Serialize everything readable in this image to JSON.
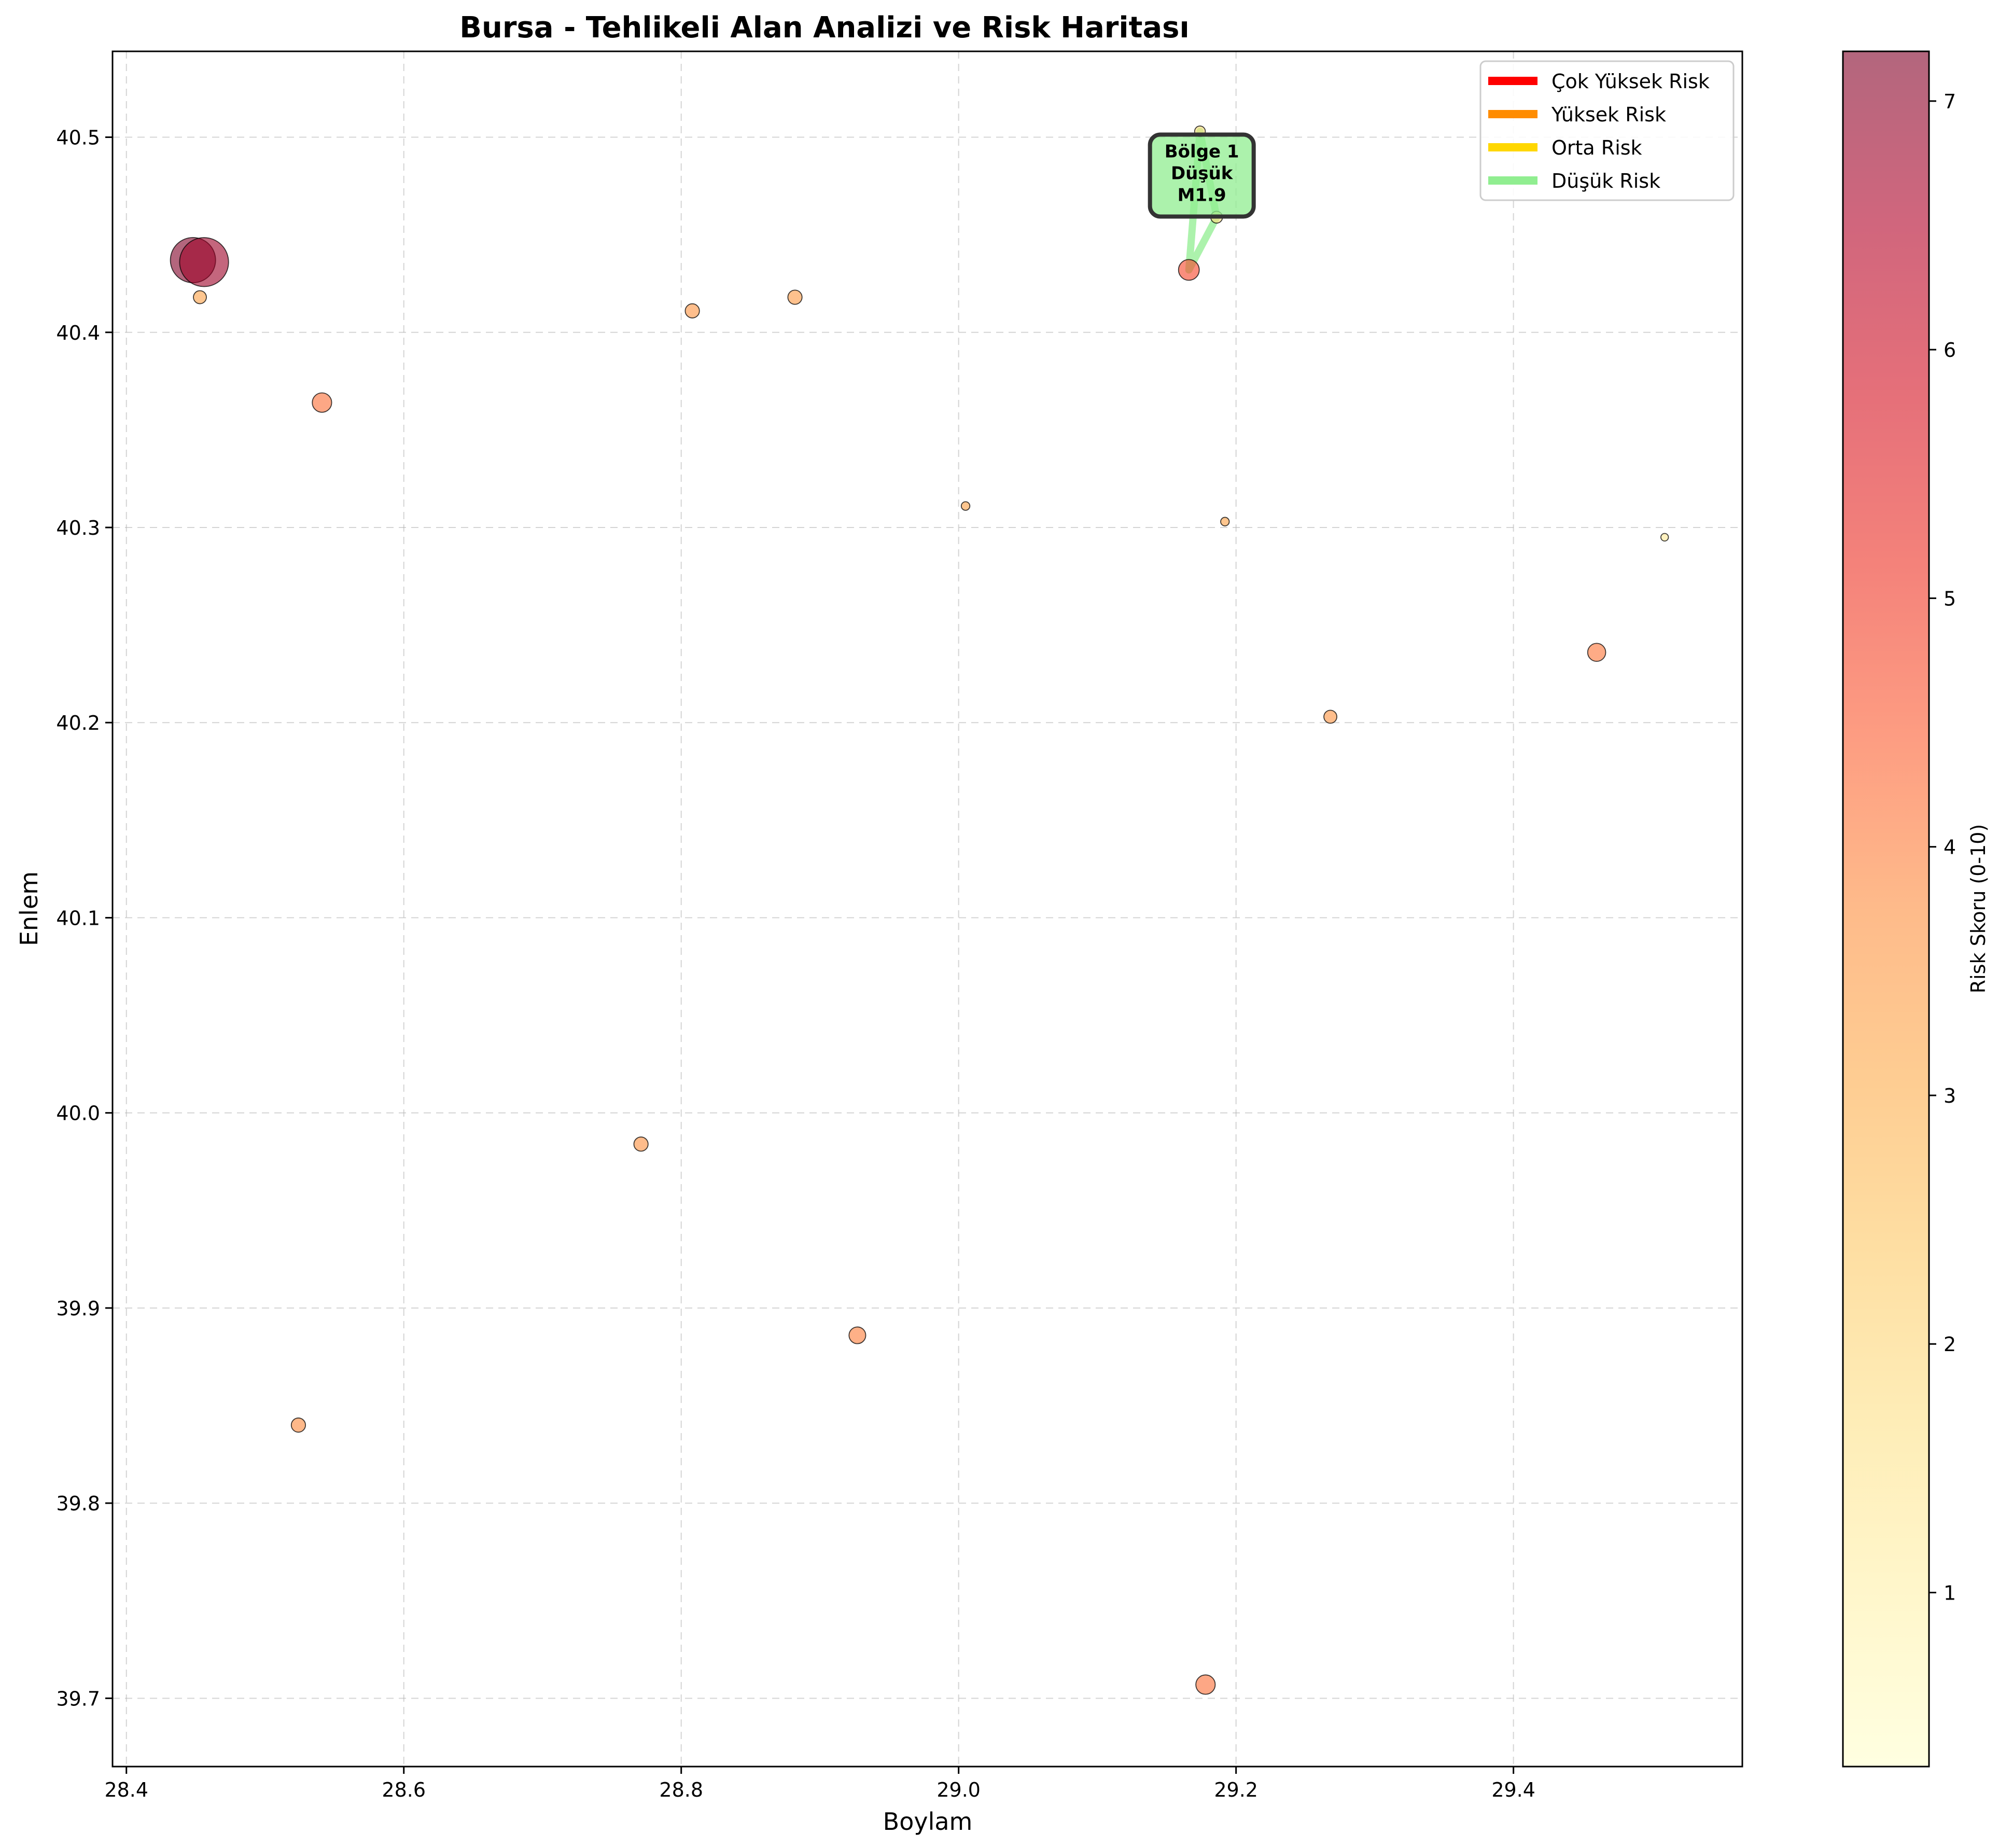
{
  "chart_data": {
    "type": "scatter",
    "title": "Bursa - Tehlikeli Alan Analizi ve Risk Haritası",
    "xlabel": "Boylam",
    "ylabel": "Enlem",
    "xlim": [
      28.4,
      29.5
    ],
    "ylim": [
      39.7,
      40.5
    ],
    "x_ticks": [
      28.4,
      28.6,
      28.8,
      29.0,
      29.2,
      29.4
    ],
    "y_ticks": [
      39.7,
      39.8,
      39.9,
      40.0,
      40.1,
      40.2,
      40.3,
      40.4,
      40.5
    ],
    "grid": true,
    "colorbar": {
      "label": "Risk Skoru (0-10)",
      "range": [
        0.3,
        7.2
      ],
      "ticks": [
        1,
        2,
        3,
        4,
        5,
        6,
        7
      ],
      "colormap": "YlOrRd"
    },
    "points": [
      {
        "lon": 28.448,
        "lat": 40.437,
        "risk": 7.2,
        "magnitude": 3.8
      },
      {
        "lon": 28.456,
        "lat": 40.436,
        "risk": 6.8,
        "magnitude": 4.0
      },
      {
        "lon": 28.453,
        "lat": 40.418,
        "risk": 3.3,
        "magnitude": 1.7
      },
      {
        "lon": 28.541,
        "lat": 40.364,
        "risk": 4.2,
        "magnitude": 2.2
      },
      {
        "lon": 28.808,
        "lat": 40.411,
        "risk": 3.6,
        "magnitude": 1.8
      },
      {
        "lon": 28.882,
        "lat": 40.418,
        "risk": 3.5,
        "magnitude": 1.8
      },
      {
        "lon": 29.005,
        "lat": 40.311,
        "risk": 3.3,
        "magnitude": 1.3
      },
      {
        "lon": 29.166,
        "lat": 40.432,
        "risk": 4.8,
        "magnitude": 2.3
      },
      {
        "lon": 29.174,
        "lat": 40.503,
        "risk": 1.9,
        "magnitude": 1.5
      },
      {
        "lon": 29.186,
        "lat": 40.459,
        "risk": 1.9,
        "magnitude": 1.6
      },
      {
        "lon": 29.192,
        "lat": 40.303,
        "risk": 3.3,
        "magnitude": 1.3
      },
      {
        "lon": 29.268,
        "lat": 40.203,
        "risk": 3.6,
        "magnitude": 1.7
      },
      {
        "lon": 29.46,
        "lat": 40.236,
        "risk": 4.1,
        "magnitude": 2.1
      },
      {
        "lon": 29.509,
        "lat": 40.295,
        "risk": 1.4,
        "magnitude": 1.2
      },
      {
        "lon": 28.771,
        "lat": 39.984,
        "risk": 3.7,
        "magnitude": 1.8
      },
      {
        "lon": 28.927,
        "lat": 39.886,
        "risk": 4.0,
        "magnitude": 2.0
      },
      {
        "lon": 28.524,
        "lat": 39.84,
        "risk": 3.8,
        "magnitude": 1.8
      },
      {
        "lon": 29.178,
        "lat": 39.707,
        "risk": 4.2,
        "magnitude": 2.2
      }
    ],
    "zones": [
      {
        "label": "Bölge 1\nDüşük\nM1.9",
        "risk_level": "Düşük Risk",
        "color": "#90ee90",
        "polygon": [
          [
            29.166,
            40.432
          ],
          [
            29.174,
            40.503
          ],
          [
            29.186,
            40.459
          ]
        ]
      }
    ],
    "legend": {
      "position": "top-right",
      "entries": [
        {
          "label": "Çok Yüksek Risk",
          "color": "#ff0000"
        },
        {
          "label": "Yüksek Risk",
          "color": "#ff8c00"
        },
        {
          "label": "Orta Risk",
          "color": "#ffd700"
        },
        {
          "label": "Düşük Risk",
          "color": "#90ee90"
        }
      ]
    }
  }
}
